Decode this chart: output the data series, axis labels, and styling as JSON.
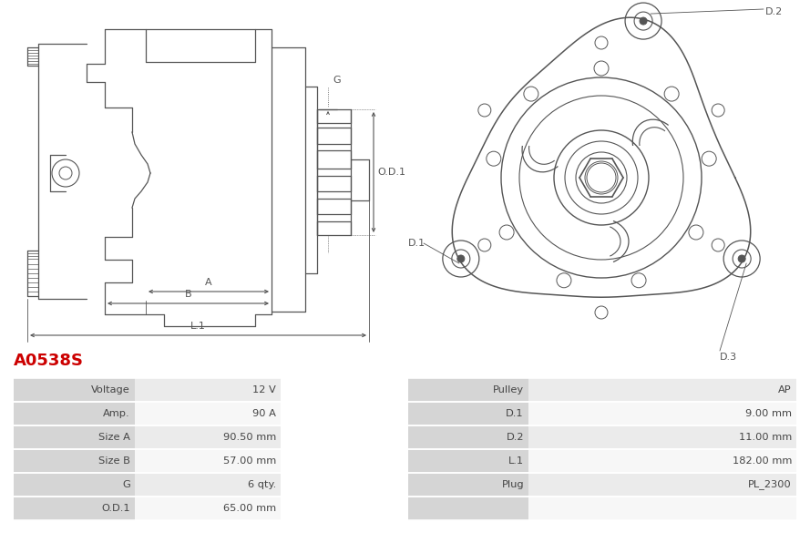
{
  "title": "A0538S",
  "title_color": "#cc0000",
  "background_color": "#ffffff",
  "table_data": {
    "left_col1": [
      "Voltage",
      "Amp.",
      "Size A",
      "Size B",
      "G",
      "O.D.1"
    ],
    "left_col2": [
      "12 V",
      "90 A",
      "90.50 mm",
      "57.00 mm",
      "6 qty.",
      "65.00 mm"
    ],
    "right_col1": [
      "Pulley",
      "D.1",
      "D.2",
      "L.1",
      "Plug",
      ""
    ],
    "right_col2": [
      "AP",
      "9.00 mm",
      "11.00 mm",
      "182.00 mm",
      "PL_2300",
      ""
    ]
  },
  "table_header_bg": "#d5d5d5",
  "table_row_bg_even": "#ebebeb",
  "table_row_bg_odd": "#f7f7f7",
  "table_border_color": "#ffffff",
  "line_color": "#555555",
  "dim_color": "#555555",
  "label_fontsize": 8.0
}
